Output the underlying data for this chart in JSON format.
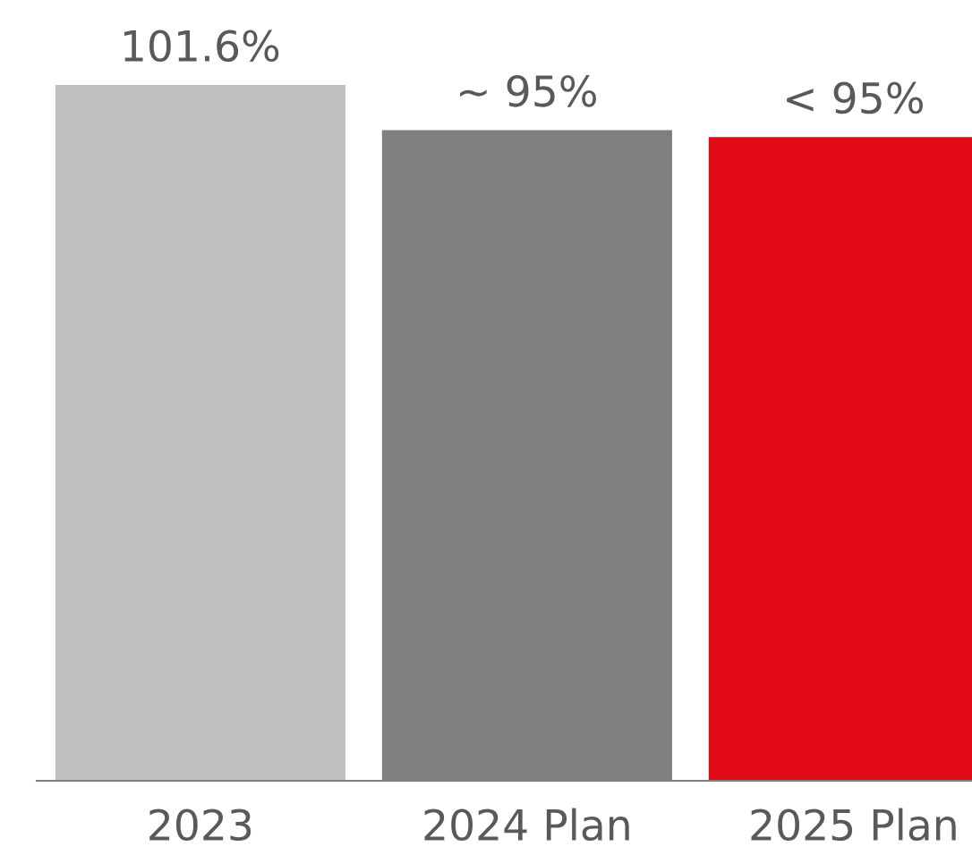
{
  "chart_data": {
    "type": "bar",
    "categories": [
      "2023",
      "2024 Plan",
      "2025 Plan"
    ],
    "values": [
      101.6,
      95,
      94
    ],
    "colors": [
      "#bfbfbf",
      "#7f7f7f",
      "#e20a17"
    ],
    "value_labels": [
      "101.6%",
      "~ 95%",
      "< 95%"
    ],
    "grid": false,
    "legend": false,
    "tick_labels": "x"
  }
}
